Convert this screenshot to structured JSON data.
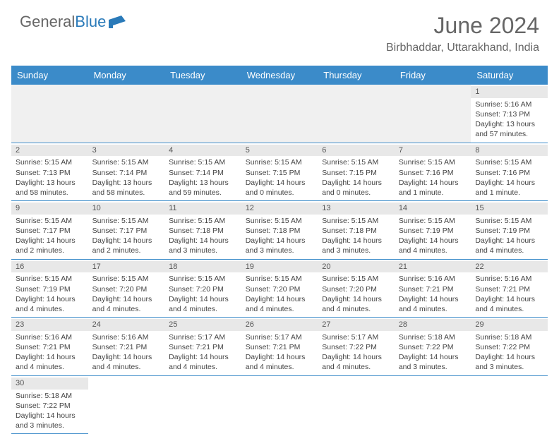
{
  "brand": {
    "part1": "General",
    "part2": "Blue"
  },
  "title": "June 2024",
  "location": "Birbhaddar, Uttarakhand, India",
  "colors": {
    "header_bg": "#3b8bc9",
    "header_fg": "#ffffff",
    "daynum_bg": "#e8e8e8",
    "border": "#3b8bc9",
    "text": "#444444"
  },
  "daynames": [
    "Sunday",
    "Monday",
    "Tuesday",
    "Wednesday",
    "Thursday",
    "Friday",
    "Saturday"
  ],
  "leading_blanks": 6,
  "days": [
    {
      "n": 1,
      "sunrise": "5:16 AM",
      "sunset": "7:13 PM",
      "daylight": "13 hours and 57 minutes."
    },
    {
      "n": 2,
      "sunrise": "5:15 AM",
      "sunset": "7:13 PM",
      "daylight": "13 hours and 58 minutes."
    },
    {
      "n": 3,
      "sunrise": "5:15 AM",
      "sunset": "7:14 PM",
      "daylight": "13 hours and 58 minutes."
    },
    {
      "n": 4,
      "sunrise": "5:15 AM",
      "sunset": "7:14 PM",
      "daylight": "13 hours and 59 minutes."
    },
    {
      "n": 5,
      "sunrise": "5:15 AM",
      "sunset": "7:15 PM",
      "daylight": "14 hours and 0 minutes."
    },
    {
      "n": 6,
      "sunrise": "5:15 AM",
      "sunset": "7:15 PM",
      "daylight": "14 hours and 0 minutes."
    },
    {
      "n": 7,
      "sunrise": "5:15 AM",
      "sunset": "7:16 PM",
      "daylight": "14 hours and 1 minute."
    },
    {
      "n": 8,
      "sunrise": "5:15 AM",
      "sunset": "7:16 PM",
      "daylight": "14 hours and 1 minute."
    },
    {
      "n": 9,
      "sunrise": "5:15 AM",
      "sunset": "7:17 PM",
      "daylight": "14 hours and 2 minutes."
    },
    {
      "n": 10,
      "sunrise": "5:15 AM",
      "sunset": "7:17 PM",
      "daylight": "14 hours and 2 minutes."
    },
    {
      "n": 11,
      "sunrise": "5:15 AM",
      "sunset": "7:18 PM",
      "daylight": "14 hours and 3 minutes."
    },
    {
      "n": 12,
      "sunrise": "5:15 AM",
      "sunset": "7:18 PM",
      "daylight": "14 hours and 3 minutes."
    },
    {
      "n": 13,
      "sunrise": "5:15 AM",
      "sunset": "7:18 PM",
      "daylight": "14 hours and 3 minutes."
    },
    {
      "n": 14,
      "sunrise": "5:15 AM",
      "sunset": "7:19 PM",
      "daylight": "14 hours and 4 minutes."
    },
    {
      "n": 15,
      "sunrise": "5:15 AM",
      "sunset": "7:19 PM",
      "daylight": "14 hours and 4 minutes."
    },
    {
      "n": 16,
      "sunrise": "5:15 AM",
      "sunset": "7:19 PM",
      "daylight": "14 hours and 4 minutes."
    },
    {
      "n": 17,
      "sunrise": "5:15 AM",
      "sunset": "7:20 PM",
      "daylight": "14 hours and 4 minutes."
    },
    {
      "n": 18,
      "sunrise": "5:15 AM",
      "sunset": "7:20 PM",
      "daylight": "14 hours and 4 minutes."
    },
    {
      "n": 19,
      "sunrise": "5:15 AM",
      "sunset": "7:20 PM",
      "daylight": "14 hours and 4 minutes."
    },
    {
      "n": 20,
      "sunrise": "5:15 AM",
      "sunset": "7:20 PM",
      "daylight": "14 hours and 4 minutes."
    },
    {
      "n": 21,
      "sunrise": "5:16 AM",
      "sunset": "7:21 PM",
      "daylight": "14 hours and 4 minutes."
    },
    {
      "n": 22,
      "sunrise": "5:16 AM",
      "sunset": "7:21 PM",
      "daylight": "14 hours and 4 minutes."
    },
    {
      "n": 23,
      "sunrise": "5:16 AM",
      "sunset": "7:21 PM",
      "daylight": "14 hours and 4 minutes."
    },
    {
      "n": 24,
      "sunrise": "5:16 AM",
      "sunset": "7:21 PM",
      "daylight": "14 hours and 4 minutes."
    },
    {
      "n": 25,
      "sunrise": "5:17 AM",
      "sunset": "7:21 PM",
      "daylight": "14 hours and 4 minutes."
    },
    {
      "n": 26,
      "sunrise": "5:17 AM",
      "sunset": "7:21 PM",
      "daylight": "14 hours and 4 minutes."
    },
    {
      "n": 27,
      "sunrise": "5:17 AM",
      "sunset": "7:22 PM",
      "daylight": "14 hours and 4 minutes."
    },
    {
      "n": 28,
      "sunrise": "5:18 AM",
      "sunset": "7:22 PM",
      "daylight": "14 hours and 3 minutes."
    },
    {
      "n": 29,
      "sunrise": "5:18 AM",
      "sunset": "7:22 PM",
      "daylight": "14 hours and 3 minutes."
    },
    {
      "n": 30,
      "sunrise": "5:18 AM",
      "sunset": "7:22 PM",
      "daylight": "14 hours and 3 minutes."
    }
  ],
  "labels": {
    "sunrise": "Sunrise: ",
    "sunset": "Sunset: ",
    "daylight": "Daylight: "
  }
}
